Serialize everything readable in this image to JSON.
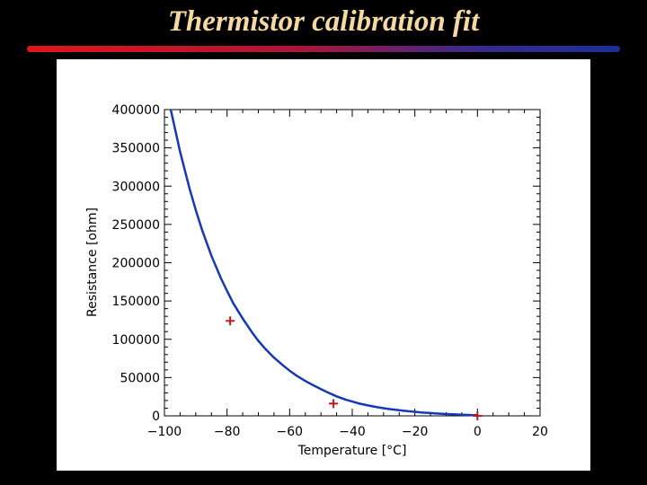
{
  "slide": {
    "title": "Thermistor calibration fit"
  },
  "chart_data": {
    "type": "line",
    "title": "",
    "xlabel": "Temperature [°C]",
    "ylabel": "Resistance [ohm]",
    "xlim": [
      -100,
      20
    ],
    "ylim": [
      0,
      400000
    ],
    "xticks": [
      -100,
      -80,
      -60,
      -40,
      -20,
      0,
      20
    ],
    "xtick_labels": [
      "−100",
      "−80",
      "−60",
      "−40",
      "−20",
      "0",
      "20"
    ],
    "yticks": [
      0,
      50000,
      100000,
      150000,
      200000,
      250000,
      300000,
      350000,
      400000
    ],
    "ytick_labels": [
      "0",
      "50000",
      "100000",
      "150000",
      "200000",
      "250000",
      "300000",
      "350000",
      "400000"
    ],
    "grid": false,
    "series": [
      {
        "kind": "line",
        "color": "#1538b8",
        "x": [
          -98,
          -95,
          -92,
          -90,
          -88,
          -85,
          -82,
          -80,
          -78,
          -75,
          -72,
          -70,
          -68,
          -65,
          -62,
          -60,
          -58,
          -55,
          -52,
          -50,
          -48,
          -45,
          -42,
          -40,
          -38,
          -35,
          -32,
          -30,
          -28,
          -25,
          -22,
          -20,
          -18,
          -15,
          -12,
          -10,
          -8,
          -5,
          -2,
          0
        ],
        "y": [
          400000,
          345000,
          297000,
          269000,
          243000,
          209000,
          180000,
          163000,
          147000,
          127000,
          109000,
          98000,
          88500,
          76000,
          65500,
          59000,
          53000,
          45500,
          39000,
          35000,
          31000,
          25500,
          21000,
          18600,
          16300,
          13600,
          11300,
          10000,
          8800,
          7400,
          6000,
          5300,
          4500,
          3600,
          2800,
          2400,
          2000,
          1500,
          1100,
          900
        ]
      },
      {
        "kind": "scatter",
        "marker": "+",
        "color": "#c01818",
        "x": [
          -79,
          -46,
          0
        ],
        "y": [
          124000,
          16000,
          0
        ]
      }
    ]
  }
}
